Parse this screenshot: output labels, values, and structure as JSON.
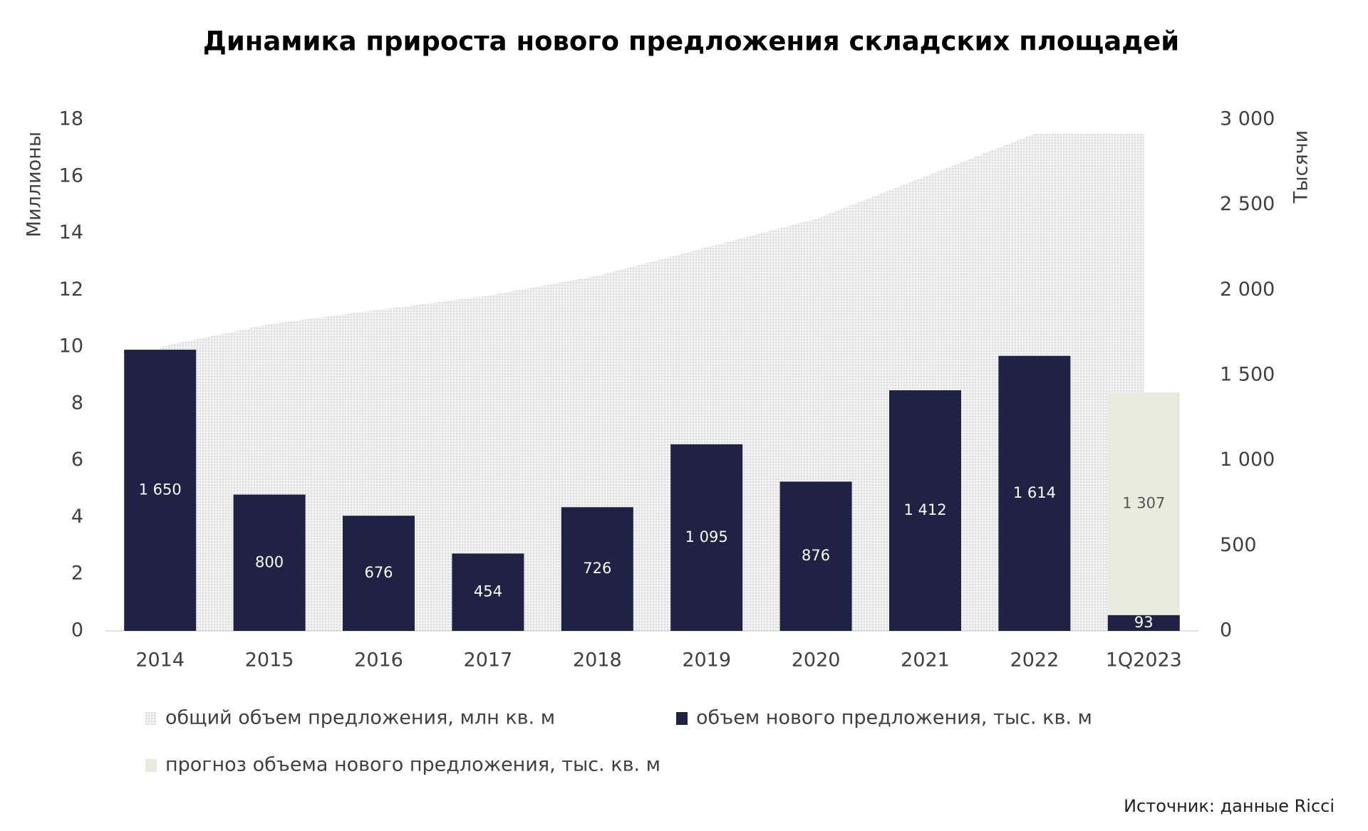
{
  "chart_data": {
    "type": "combo",
    "title": "Динамика прироста нового предложения складских площадей",
    "y_label": "Миллионы",
    "y2_label": "Тысячи",
    "source": "Источник: данные Ricci",
    "categories": [
      "2014",
      "2015",
      "2016",
      "2017",
      "2018",
      "2019",
      "2020",
      "2021",
      "2022",
      "1Q2023"
    ],
    "stacked": true,
    "series": [
      {
        "name": "общий объем предложения, млн кв. м",
        "type": "area",
        "color": "#e4e4e4",
        "values": [
          10.0,
          10.8,
          11.3,
          11.8,
          12.5,
          13.5,
          14.5,
          16.0,
          17.5,
          17.5
        ]
      },
      {
        "name": "объем нового предложения, тыс. кв. м",
        "type": "bar",
        "axis": "y2",
        "color": "#1f2244",
        "values": [
          1650,
          800,
          676,
          454,
          726,
          1095,
          876,
          1412,
          1614,
          93
        ],
        "value_labels": [
          "1 650",
          "800",
          "676",
          "454",
          "726",
          "1 095",
          "876",
          "1 412",
          "1 614",
          "93"
        ]
      },
      {
        "name": "прогноз объема нового предложения, тыс. кв. м",
        "type": "bar",
        "axis": "y2",
        "color": "#e9ebdf",
        "values": [
          null,
          null,
          null,
          null,
          null,
          null,
          null,
          null,
          null,
          1307
        ],
        "value_labels": [
          null,
          null,
          null,
          null,
          null,
          null,
          null,
          null,
          null,
          "1 307"
        ]
      }
    ],
    "ylim": [
      0,
      18
    ],
    "yticks": [
      0,
      2,
      4,
      6,
      8,
      10,
      12,
      14,
      16,
      18
    ],
    "y2lim": [
      0,
      3000
    ],
    "y2ticks": [
      0,
      500,
      {
        "value": 1000,
        "label": "1 000"
      },
      {
        "value": 1500,
        "label": "1 500"
      },
      {
        "value": 2000,
        "label": "2 000"
      },
      {
        "value": 2500,
        "label": "2 500"
      },
      {
        "value": 3000,
        "label": "3 000"
      }
    ]
  }
}
